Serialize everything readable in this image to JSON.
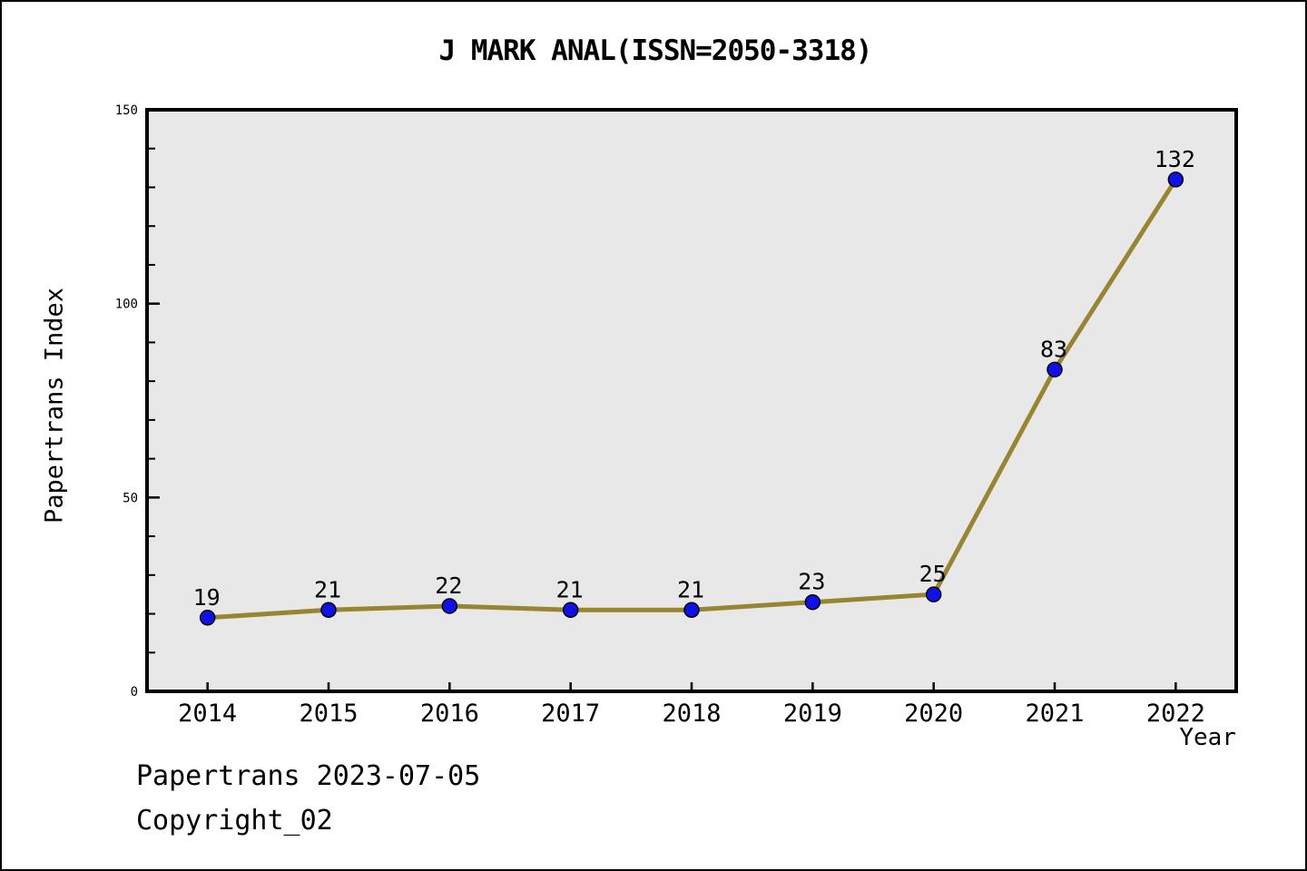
{
  "chart_data": {
    "type": "line",
    "title": "J MARK ANAL(ISSN=2050-3318)",
    "xlabel": "Year",
    "ylabel": "Papertrans Index",
    "x": [
      2014,
      2015,
      2016,
      2017,
      2018,
      2019,
      2020,
      2021,
      2022
    ],
    "values": [
      19,
      21,
      22,
      21,
      21,
      23,
      25,
      83,
      132
    ],
    "point_labels": [
      "19",
      "21",
      "22",
      "21",
      "21",
      "23",
      "25",
      "83",
      "132"
    ],
    "xlim": [
      2013.5,
      2022.5
    ],
    "ylim": [
      0,
      150
    ],
    "yticks": [
      0,
      50,
      100,
      150
    ],
    "ytick_labels": [
      "0",
      "50",
      "100",
      "150"
    ],
    "y_minor_step": 10,
    "grid": false,
    "legend": null,
    "colors": {
      "line": "#97852F",
      "marker_fill": "#1010EB",
      "marker_edge": "#000000",
      "plot_background": "#E8E8E8",
      "figure_background": "#FFFFFF",
      "axis": "#000000",
      "text": "#000000"
    }
  },
  "footer": {
    "line1": "Papertrans 2023-07-05",
    "line2": "Copyright_02"
  }
}
